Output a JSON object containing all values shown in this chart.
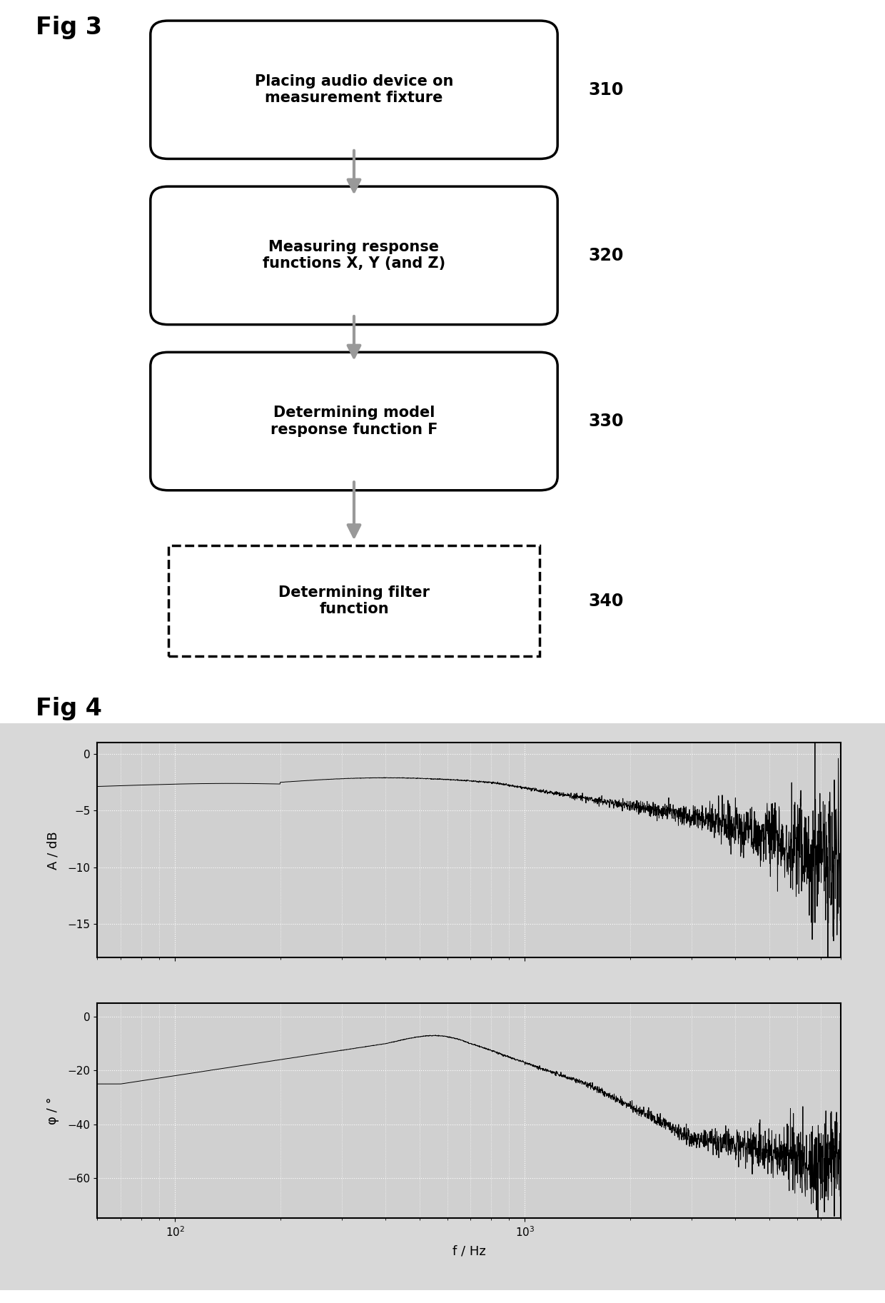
{
  "fig_label_3": "Fig 3",
  "fig_label_4": "Fig 4",
  "boxes": [
    {
      "text": "Placing audio device on\nmeasurement fixture",
      "style": "solid",
      "label": "310"
    },
    {
      "text": "Measuring response\nfunctions X, Y (and Z)",
      "style": "solid",
      "label": "320"
    },
    {
      "text": "Determining model\nresponse function F",
      "style": "solid",
      "label": "330"
    },
    {
      "text": "Determining filter\nfunction",
      "style": "dashed",
      "label": "340"
    }
  ],
  "amp_ylabel": "A / dB",
  "amp_ylim": [
    -18,
    1
  ],
  "amp_yticks": [
    0,
    -5,
    -10,
    -15
  ],
  "phase_ylabel": "φ / °",
  "phase_ylim": [
    -75,
    5
  ],
  "phase_yticks": [
    0,
    -20,
    -40,
    -60
  ],
  "xlabel": "f / Hz",
  "freq_min": 60,
  "freq_max": 8000,
  "background_color": "#ffffff",
  "plot_bg_color": "#d8d8d8",
  "inner_plot_bg": "#d0d0d0",
  "grid_color": "#ffffff",
  "line_color": "#000000",
  "box_bg": "#ffffff",
  "box_border": "#000000",
  "arrow_color": "#999999"
}
